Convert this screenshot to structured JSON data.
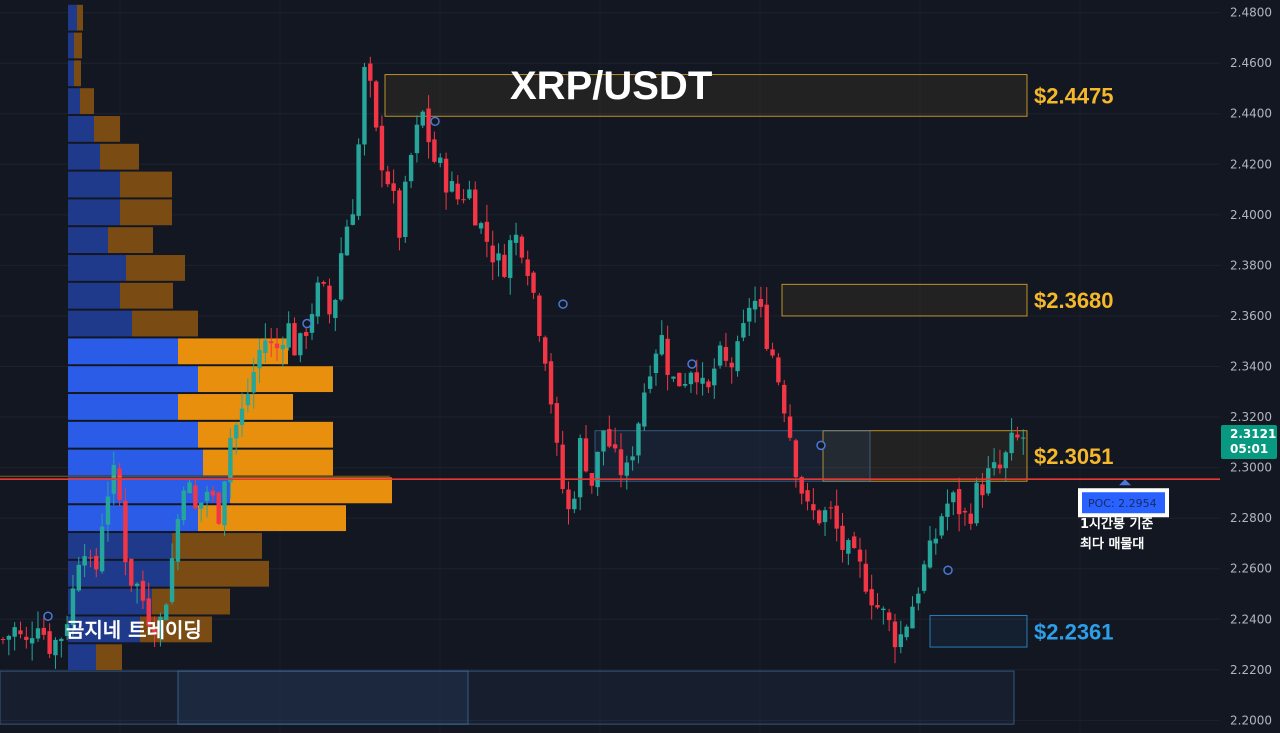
{
  "chart_data": {
    "type": "candlestick",
    "title": "XRP/USDT",
    "ylim": [
      2.195,
      2.485
    ],
    "y_ticks": [
      "2.4800",
      "2.4600",
      "2.4400",
      "2.4200",
      "2.4000",
      "2.3800",
      "2.3600",
      "2.3400",
      "2.3200",
      "2.3000",
      "2.2800",
      "2.2600",
      "2.2400",
      "2.2200",
      "2.2000"
    ],
    "waypoints": [
      2.232,
      2.236,
      2.229,
      2.242,
      2.23,
      2.232,
      2.246,
      2.275,
      2.252,
      2.289,
      2.298,
      2.258,
      2.252,
      2.24,
      2.239,
      2.266,
      2.298,
      2.282,
      2.291,
      2.282,
      2.312,
      2.32,
      2.336,
      2.352,
      2.345,
      2.358,
      2.344,
      2.36,
      2.372,
      2.358,
      2.391,
      2.407,
      2.462,
      2.428,
      2.414,
      2.393,
      2.423,
      2.44,
      2.422,
      2.415,
      2.406,
      2.411,
      2.397,
      2.387,
      2.378,
      2.392,
      2.388,
      2.364,
      2.342,
      2.299,
      2.28,
      2.311,
      2.293,
      2.316,
      2.302,
      2.297,
      2.318,
      2.341,
      2.353,
      2.334,
      2.335,
      2.343,
      2.325,
      2.344,
      2.339,
      2.346,
      2.369,
      2.358,
      2.343,
      2.324,
      2.3,
      2.282,
      2.281,
      2.282,
      2.269,
      2.263,
      2.257,
      2.246,
      2.239,
      2.231,
      2.243,
      2.257,
      2.268,
      2.285,
      2.287,
      2.279,
      2.291,
      2.297,
      2.299,
      2.309,
      2.312
    ],
    "volume_profile": [
      {
        "price": 2.478,
        "buy": 9,
        "sell": 6
      },
      {
        "price": 2.467,
        "buy": 6,
        "sell": 8
      },
      {
        "price": 2.456,
        "buy": 6,
        "sell": 7
      },
      {
        "price": 2.445,
        "buy": 12,
        "sell": 14
      },
      {
        "price": 2.434,
        "buy": 26,
        "sell": 26
      },
      {
        "price": 2.423,
        "buy": 32,
        "sell": 39
      },
      {
        "price": 2.412,
        "buy": 52,
        "sell": 52
      },
      {
        "price": 2.401,
        "buy": 52,
        "sell": 52
      },
      {
        "price": 2.39,
        "buy": 40,
        "sell": 45
      },
      {
        "price": 2.379,
        "buy": 58,
        "sell": 59
      },
      {
        "price": 2.368,
        "buy": 52,
        "sell": 53
      },
      {
        "price": 2.357,
        "buy": 64,
        "sell": 66
      },
      {
        "price": 2.346,
        "buy": 110,
        "sell": 110
      },
      {
        "price": 2.335,
        "buy": 130,
        "sell": 135
      },
      {
        "price": 2.324,
        "buy": 110,
        "sell": 115
      },
      {
        "price": 2.313,
        "buy": 130,
        "sell": 135
      },
      {
        "price": 2.302,
        "buy": 135,
        "sell": 130
      },
      {
        "price": 2.291,
        "buy": 162,
        "sell": 162
      },
      {
        "price": 2.28,
        "buy": 130,
        "sell": 148
      },
      {
        "price": 2.269,
        "buy": 104,
        "sell": 90
      },
      {
        "price": 2.258,
        "buy": 104,
        "sell": 97
      },
      {
        "price": 2.247,
        "buy": 84,
        "sell": 78
      },
      {
        "price": 2.236,
        "buy": 72,
        "sell": 72
      },
      {
        "price": 2.225,
        "buy": 28,
        "sell": 26
      }
    ],
    "zones": [
      {
        "label": "$2.4475",
        "top": 2.4555,
        "bottom": 2.439,
        "color": "#f5b82a"
      },
      {
        "label": "$2.3680",
        "top": 2.3725,
        "bottom": 2.36,
        "color": "#f5b82a"
      },
      {
        "label": "$2.3051",
        "top": 2.3146,
        "bottom": 2.2946,
        "color": "#f5b82a"
      },
      {
        "label": "$2.2361",
        "top": 2.2415,
        "bottom": 2.229,
        "color": "#2d9ee8"
      }
    ],
    "poc": {
      "label": "POC: 2.2954",
      "price": 2.2954,
      "line_color": "#e53935"
    },
    "current_price": {
      "price_label": "2.3121",
      "countdown": "05:01",
      "price": 2.3121,
      "color": "#089981"
    },
    "annotation": [
      "1시간봉 기준",
      "최다 매물대"
    ],
    "brand": "곰지네 트레이딩",
    "colors": {
      "up": "#26a69a",
      "down": "#f23645",
      "buy_volume": "#2962ff",
      "sell_volume": "#f59f0b"
    }
  }
}
